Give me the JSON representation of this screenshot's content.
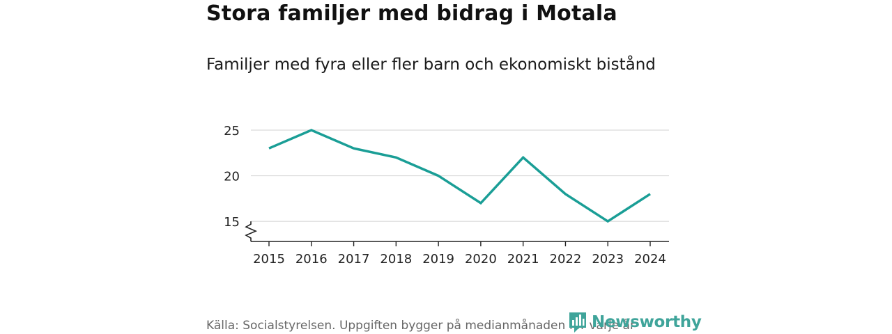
{
  "title": "Stora familjer med bidrag i Motala",
  "subtitle": "Familjer med fyra eller fler barn och ekonomiskt bistånd",
  "source": "Källa: Socialstyrelsen. Uppgiften bygger på medianmånaden för varje år",
  "brand": {
    "name": "Newsworthy",
    "color": "#3fa49a",
    "icon": "bar-chart-speech-bubble-icon"
  },
  "colors": {
    "line": "#1a9e96",
    "grid": "#d9d9d9",
    "axis": "#222222"
  },
  "chart_data": {
    "type": "line",
    "title": "Stora familjer med bidrag i Motala",
    "subtitle": "Familjer med fyra eller fler barn och ekonomiskt bistånd",
    "xlabel": "",
    "ylabel": "",
    "x": [
      "2015",
      "2016",
      "2017",
      "2018",
      "2019",
      "2020",
      "2021",
      "2022",
      "2023",
      "2024"
    ],
    "series": [
      {
        "name": "Familjer med fyra eller fler barn och ekonomiskt bistånd",
        "values": [
          23,
          25,
          23,
          22,
          20,
          17,
          22,
          18,
          15,
          18
        ]
      }
    ],
    "yticks": [
      15,
      20,
      25
    ],
    "ylim": [
      12.8,
      25
    ],
    "y_axis_break": true,
    "grid": true,
    "legend": "none"
  }
}
